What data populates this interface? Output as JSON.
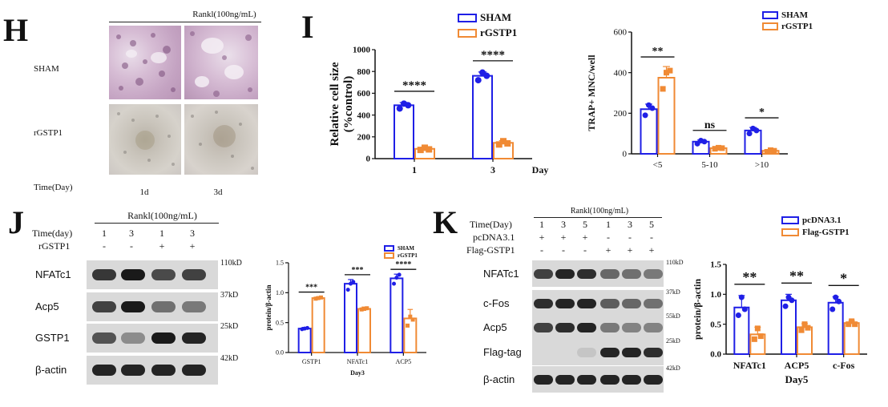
{
  "colors": {
    "blue": "#1f1fe6",
    "orange": "#f08a34"
  },
  "panelH": {
    "letter": "H",
    "condition": "Rankl(100ng/mL)",
    "rows": [
      "SHAM",
      "rGSTP1"
    ],
    "time_label": "Time(Day)",
    "cols": [
      "1d",
      "3d"
    ]
  },
  "panelI": {
    "letter": "I"
  },
  "panelJ": {
    "letter": "J",
    "condition": "Rankl(100ng/mL)",
    "time_label": "Time(day)",
    "time_values": [
      "1",
      "3",
      "1",
      "3"
    ],
    "treat_label": "rGSTP1",
    "treat_values": [
      "-",
      "-",
      "+",
      "+"
    ],
    "blots": [
      {
        "name": "NFATc1",
        "kd": "110kD"
      },
      {
        "name": "Acp5",
        "kd": "37kD"
      },
      {
        "name": "GSTP1",
        "kd": "25kD"
      },
      {
        "name": "β-actin",
        "kd": "42kD"
      }
    ]
  },
  "panelK": {
    "letter": "K",
    "condition": "Rankl(100ng/mL)",
    "time_label": "Time(Day)",
    "time_values": [
      "1",
      "3",
      "5",
      "1",
      "3",
      "5"
    ],
    "row2_label": "pcDNA3.1",
    "row2_values": [
      "+",
      "+",
      "+",
      "-",
      "-",
      "-"
    ],
    "row3_label": "Flag-GSTP1",
    "row3_values": [
      "-",
      "-",
      "-",
      "+",
      "+",
      "+"
    ],
    "blots": [
      {
        "name": "NFATc1",
        "kd": "110kD"
      },
      {
        "name": "c-Fos",
        "kd": "37kD"
      },
      {
        "name": "Acp5",
        "kd": "55kD"
      },
      {
        "name": "Flag-tag",
        "kd": "25kD"
      },
      {
        "name": "β-actin",
        "kd": "42kD"
      }
    ]
  },
  "chart_data": [
    {
      "id": "I-left",
      "type": "bar",
      "title": "",
      "xlabel": "",
      "xunit": "Day",
      "ylabel": [
        "Relative cell size",
        "(%control)"
      ],
      "categories": [
        "1",
        "3"
      ],
      "ylim": [
        0,
        1000
      ],
      "yticks": [
        0,
        200,
        400,
        600,
        800,
        1000
      ],
      "series": [
        {
          "name": "SHAM",
          "values": [
            490,
            760
          ],
          "err": [
            25,
            35
          ],
          "points": [
            [
              460,
              505,
              490
            ],
            [
              720,
              790,
              760
            ]
          ]
        },
        {
          "name": "rGSTP1",
          "values": [
            90,
            145
          ],
          "err": [
            15,
            20
          ],
          "points": [
            [
              80,
              100,
              85
            ],
            [
              130,
              160,
              140
            ]
          ]
        }
      ],
      "significance": [
        "****",
        "****"
      ],
      "legend": [
        "SHAM",
        "rGSTP1"
      ]
    },
    {
      "id": "I-right",
      "type": "bar",
      "ylabel": "TRAP+ MNC/well",
      "categories": [
        "<5",
        "5-10",
        ">10"
      ],
      "ylim": [
        0,
        600
      ],
      "yticks": [
        0,
        200,
        400,
        600
      ],
      "series": [
        {
          "name": "SHAM",
          "values": [
            220,
            60,
            115
          ],
          "err": [
            25,
            8,
            15
          ],
          "points": [
            [
              190,
              240,
              225
            ],
            [
              50,
              65,
              60
            ],
            [
              100,
              125,
              115
            ]
          ]
        },
        {
          "name": "rGSTP1",
          "values": [
            375,
            28,
            15
          ],
          "err": [
            55,
            6,
            6
          ],
          "points": [
            [
              320,
              400,
              410
            ],
            [
              25,
              30,
              28
            ],
            [
              10,
              18,
              15
            ]
          ]
        }
      ],
      "significance": [
        "**",
        "ns",
        "*"
      ],
      "legend": [
        "SHAM",
        "rGSTP1"
      ]
    },
    {
      "id": "J",
      "type": "bar",
      "ylabel": "protein/β-actin",
      "xlabel": "Day3",
      "categories": [
        "GSTP1",
        "NFATc1",
        "ACP5"
      ],
      "ylim": [
        0,
        1.5
      ],
      "yticks": [
        0.0,
        0.5,
        1.0,
        1.5
      ],
      "series": [
        {
          "name": "SHAM",
          "values": [
            0.4,
            1.15,
            1.24
          ],
          "err": [
            0.02,
            0.07,
            0.07
          ],
          "points": [
            [
              0.39,
              0.4,
              0.41
            ],
            [
              1.05,
              1.15,
              1.18
            ],
            [
              1.15,
              1.25,
              1.3
            ]
          ]
        },
        {
          "name": "rGSTP1",
          "values": [
            0.91,
            0.73,
            0.57
          ],
          "err": [
            0.02,
            0.03,
            0.15
          ],
          "points": [
            [
              0.9,
              0.91,
              0.92
            ],
            [
              0.72,
              0.73,
              0.74
            ],
            [
              0.45,
              0.6,
              0.55
            ]
          ]
        }
      ],
      "significance": [
        "***",
        "***",
        "****"
      ],
      "legend": [
        "SHAM",
        "rGSTP1"
      ]
    },
    {
      "id": "K",
      "type": "bar",
      "ylabel": "protein/β-actin",
      "xlabel": "Day5",
      "categories": [
        "NFATc1",
        "ACP5",
        "c-Fos"
      ],
      "ylim": [
        0,
        1.5
      ],
      "yticks": [
        0.0,
        0.5,
        1.0,
        1.5
      ],
      "series": [
        {
          "name": "pcDNA3.1",
          "values": [
            0.78,
            0.9,
            0.86
          ],
          "err": [
            0.2,
            0.1,
            0.1
          ],
          "points": [
            [
              0.65,
              0.95,
              0.75
            ],
            [
              0.8,
              0.95,
              0.9
            ],
            [
              0.75,
              0.95,
              0.88
            ]
          ]
        },
        {
          "name": "Flag-GSTP1",
          "values": [
            0.33,
            0.45,
            0.52
          ],
          "err": [
            0.12,
            0.06,
            0.04
          ],
          "points": [
            [
              0.25,
              0.43,
              0.3
            ],
            [
              0.4,
              0.5,
              0.44
            ],
            [
              0.5,
              0.55,
              0.5
            ]
          ]
        }
      ],
      "significance": [
        "**",
        "**",
        "*"
      ],
      "legend": [
        "pcDNA3.1",
        "Flag-GSTP1"
      ]
    }
  ]
}
